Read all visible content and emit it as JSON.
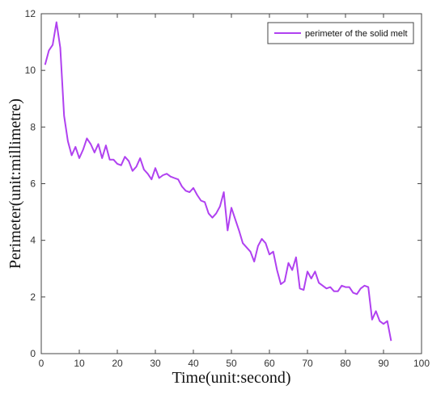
{
  "chart_data": {
    "type": "line",
    "title": "",
    "xlabel": "Time(unit:second)",
    "ylabel": "Perimeter(unit:millimetre)",
    "xlim": [
      0,
      100
    ],
    "ylim": [
      0,
      12
    ],
    "xticks": [
      0,
      10,
      20,
      30,
      40,
      50,
      60,
      70,
      80,
      90,
      100
    ],
    "yticks": [
      0,
      2,
      4,
      6,
      8,
      10,
      12
    ],
    "grid": false,
    "legend_position": "top-right",
    "series": [
      {
        "name": "perimeter of the solid melt",
        "color": "#b041f0",
        "x": [
          1,
          2,
          3,
          4,
          5,
          6,
          7,
          8,
          9,
          10,
          11,
          12,
          13,
          14,
          15,
          16,
          17,
          18,
          19,
          20,
          21,
          22,
          23,
          24,
          25,
          26,
          27,
          28,
          29,
          30,
          31,
          32,
          33,
          34,
          35,
          36,
          37,
          38,
          39,
          40,
          41,
          42,
          43,
          44,
          45,
          46,
          47,
          48,
          49,
          50,
          51,
          52,
          53,
          54,
          55,
          56,
          57,
          58,
          59,
          60,
          61,
          62,
          63,
          64,
          65,
          66,
          67,
          68,
          69,
          70,
          71,
          72,
          73,
          74,
          75,
          76,
          77,
          78,
          79,
          80,
          81,
          82,
          83,
          84,
          85,
          86,
          87,
          88,
          89,
          90,
          91,
          92
        ],
        "y": [
          10.2,
          10.7,
          10.9,
          11.7,
          10.8,
          8.4,
          7.5,
          7.0,
          7.3,
          6.9,
          7.2,
          7.6,
          7.4,
          7.1,
          7.4,
          6.9,
          7.35,
          6.85,
          6.85,
          6.7,
          6.65,
          6.95,
          6.8,
          6.45,
          6.6,
          6.9,
          6.5,
          6.35,
          6.15,
          6.55,
          6.2,
          6.3,
          6.35,
          6.25,
          6.2,
          6.15,
          5.9,
          5.75,
          5.7,
          5.85,
          5.6,
          5.4,
          5.35,
          4.95,
          4.8,
          4.95,
          5.2,
          5.7,
          4.35,
          5.15,
          4.75,
          4.35,
          3.9,
          3.75,
          3.6,
          3.25,
          3.8,
          4.05,
          3.9,
          3.5,
          3.6,
          2.95,
          2.45,
          2.55,
          3.2,
          2.95,
          3.4,
          2.3,
          2.25,
          2.9,
          2.65,
          2.9,
          2.5,
          2.4,
          2.3,
          2.35,
          2.2,
          2.2,
          2.4,
          2.35,
          2.35,
          2.15,
          2.1,
          2.3,
          2.4,
          2.35,
          1.2,
          1.5,
          1.15,
          1.05,
          1.15,
          0.45
        ]
      }
    ]
  }
}
